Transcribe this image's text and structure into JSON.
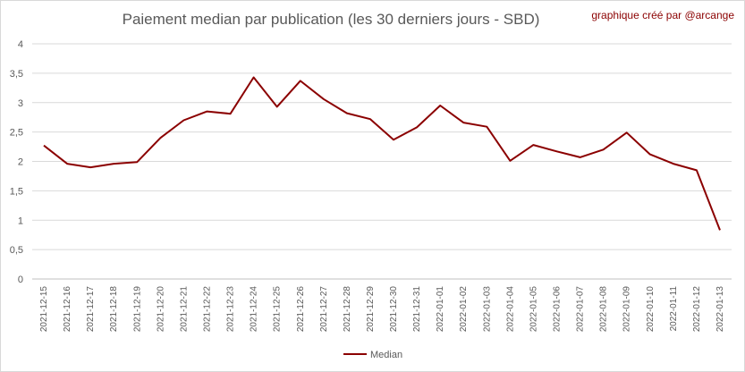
{
  "header": {
    "title": "Paiement median par publication (les 30 derniers jours - SBD)",
    "credit": "graphique créé par @arcange"
  },
  "chart_data": {
    "type": "line",
    "title": "Paiement median par publication (les 30 derniers jours - SBD)",
    "xlabel": "",
    "ylabel": "",
    "ylim": [
      0,
      4
    ],
    "yticks": [
      "0",
      "0,5",
      "1",
      "1,5",
      "2",
      "2,5",
      "3",
      "3,5",
      "4"
    ],
    "grid": true,
    "legend_position": "bottom",
    "categories": [
      "2021-12-15",
      "2021-12-16",
      "2021-12-17",
      "2021-12-18",
      "2021-12-19",
      "2021-12-20",
      "2021-12-21",
      "2021-12-22",
      "2021-12-23",
      "2021-12-24",
      "2021-12-25",
      "2021-12-26",
      "2021-12-27",
      "2021-12-28",
      "2021-12-29",
      "2021-12-30",
      "2021-12-31",
      "2022-01-01",
      "2022-01-02",
      "2022-01-03",
      "2022-01-04",
      "2022-01-05",
      "2022-01-06",
      "2022-01-07",
      "2022-01-08",
      "2022-01-09",
      "2022-01-10",
      "2022-01-11",
      "2022-01-12",
      "2022-01-13"
    ],
    "series": [
      {
        "name": "Median",
        "color": "#8b0000",
        "values": [
          2.27,
          1.96,
          1.9,
          1.96,
          1.99,
          2.4,
          2.7,
          2.85,
          2.81,
          3.43,
          2.93,
          3.37,
          3.06,
          2.82,
          2.72,
          2.37,
          2.58,
          2.95,
          2.66,
          2.59,
          2.01,
          2.28,
          2.17,
          2.07,
          2.2,
          2.49,
          2.12,
          1.96,
          1.85,
          0.83
        ]
      }
    ]
  }
}
